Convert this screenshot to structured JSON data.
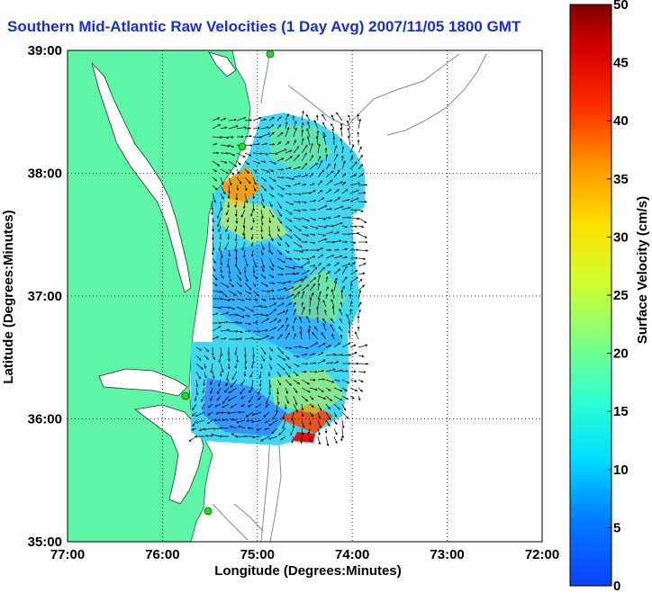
{
  "title": "Southern Mid-Atlantic Raw Velocities (1 Day Avg) 2007/11/05 1800 GMT",
  "map": {
    "xlabel": "Longitude (Degrees:Minutes)",
    "ylabel": "Latitude (Degrees:Minutes)",
    "x_ticks": [
      "77:00",
      "76:00",
      "75:00",
      "74:00",
      "73:00",
      "72:00"
    ],
    "y_ticks": [
      "39:00",
      "38:00",
      "37:00",
      "36:00",
      "35:00"
    ],
    "land_color": "#5ff5a6",
    "water_color": "#ffffff",
    "bathymetry_color": "#8a8a8a",
    "station_color": "#22dd22"
  },
  "colorbar": {
    "label": "Surface Velocity (cm/s)",
    "range": [
      0,
      50
    ],
    "ticks": [
      "50",
      "45",
      "40",
      "35",
      "30",
      "25",
      "20",
      "15",
      "10",
      "5",
      "0"
    ]
  }
}
